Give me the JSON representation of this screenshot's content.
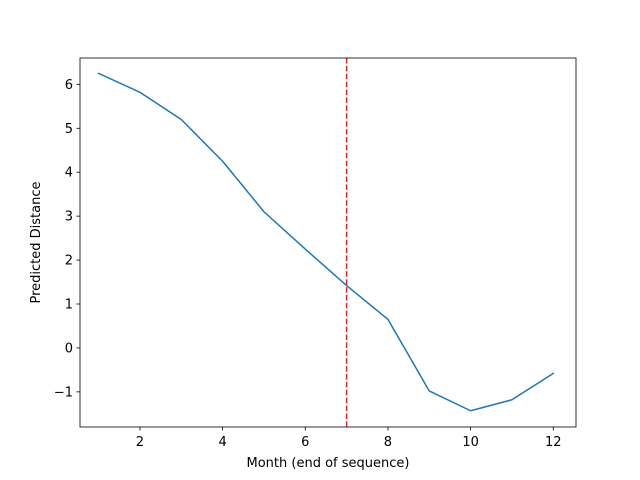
{
  "chart_data": {
    "type": "line",
    "title": "",
    "xlabel": "Month (end of sequence)",
    "ylabel": "Predicted Distance",
    "xlim": [
      0.55,
      12.55
    ],
    "ylim": [
      -1.8,
      6.6
    ],
    "x_ticks": [
      2,
      4,
      6,
      8,
      10,
      12
    ],
    "y_ticks": [
      -1,
      0,
      1,
      2,
      3,
      4,
      5,
      6
    ],
    "x_tick_labels": [
      "2",
      "4",
      "6",
      "8",
      "10",
      "12"
    ],
    "y_tick_labels": [
      "−1",
      "0",
      "1",
      "2",
      "3",
      "4",
      "5",
      "6"
    ],
    "grid": false,
    "series": [
      {
        "color": "#1f77b4",
        "x": [
          1,
          2,
          3,
          4,
          5,
          6,
          7,
          8,
          9,
          10,
          11,
          12
        ],
        "y": [
          6.25,
          5.82,
          5.2,
          4.25,
          3.1,
          2.25,
          1.42,
          0.65,
          -0.98,
          -1.43,
          -1.18,
          -0.58
        ]
      }
    ],
    "vlines": [
      {
        "x": 7,
        "color": "#d62728",
        "style": "dashed"
      }
    ]
  }
}
